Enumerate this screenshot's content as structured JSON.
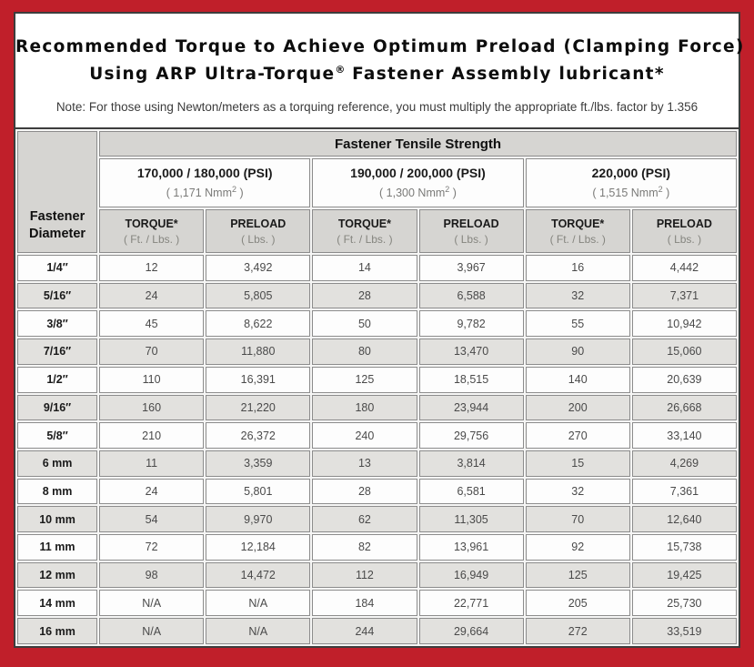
{
  "page": {
    "title_line1": "Recommended Torque to Achieve Optimum Preload (Clamping Force)",
    "title_line2_pre": "Using ARP Ultra-Torque",
    "title_line2_mark": "®",
    "title_line2_post": " Fastener Assembly lubricant*",
    "note": "Note: For those using Newton/meters as a torquing reference, you must multiply the appropriate ft./lbs. factor by 1.356"
  },
  "colors": {
    "frame_red": "#c01f2a",
    "header_gray": "#d6d5d2",
    "row_alt_gray": "#e2e1de",
    "cell_border": "#8c8c8c",
    "outer_border": "#3d3d3d"
  },
  "table": {
    "main_header": "Fastener Tensile Strength",
    "corner_header": {
      "line1": "Fastener",
      "line2": "Diameter"
    },
    "groups": [
      {
        "psi": "170,000 / 180,000 (PSI)",
        "nmm_pre": "( 1,171 Nmm",
        "nmm_sup": "2",
        "nmm_post": " )"
      },
      {
        "psi": "190,000 / 200,000 (PSI)",
        "nmm_pre": "( 1,300 Nmm",
        "nmm_sup": "2",
        "nmm_post": " )"
      },
      {
        "psi": "220,000 (PSI)",
        "nmm_pre": "( 1,515 Nmm",
        "nmm_sup": "2",
        "nmm_post": " )"
      }
    ],
    "col_headers": {
      "torque": {
        "label": "TORQUE*",
        "unit": "( Ft. / Lbs. )"
      },
      "preload": {
        "label": "PRELOAD",
        "unit": "( Lbs. )"
      }
    },
    "rows": [
      {
        "diameter": "1/4″",
        "values": [
          "12",
          "3,492",
          "14",
          "3,967",
          "16",
          "4,442"
        ]
      },
      {
        "diameter": "5/16″",
        "values": [
          "24",
          "5,805",
          "28",
          "6,588",
          "32",
          "7,371"
        ]
      },
      {
        "diameter": "3/8″",
        "values": [
          "45",
          "8,622",
          "50",
          "9,782",
          "55",
          "10,942"
        ]
      },
      {
        "diameter": "7/16″",
        "values": [
          "70",
          "11,880",
          "80",
          "13,470",
          "90",
          "15,060"
        ]
      },
      {
        "diameter": "1/2″",
        "values": [
          "110",
          "16,391",
          "125",
          "18,515",
          "140",
          "20,639"
        ]
      },
      {
        "diameter": "9/16″",
        "values": [
          "160",
          "21,220",
          "180",
          "23,944",
          "200",
          "26,668"
        ]
      },
      {
        "diameter": "5/8″",
        "values": [
          "210",
          "26,372",
          "240",
          "29,756",
          "270",
          "33,140"
        ]
      },
      {
        "diameter": "6 mm",
        "values": [
          "11",
          "3,359",
          "13",
          "3,814",
          "15",
          "4,269"
        ]
      },
      {
        "diameter": "8 mm",
        "values": [
          "24",
          "5,801",
          "28",
          "6,581",
          "32",
          "7,361"
        ]
      },
      {
        "diameter": "10 mm",
        "values": [
          "54",
          "9,970",
          "62",
          "11,305",
          "70",
          "12,640"
        ]
      },
      {
        "diameter": "11 mm",
        "values": [
          "72",
          "12,184",
          "82",
          "13,961",
          "92",
          "15,738"
        ]
      },
      {
        "diameter": "12 mm",
        "values": [
          "98",
          "14,472",
          "112",
          "16,949",
          "125",
          "19,425"
        ]
      },
      {
        "diameter": "14 mm",
        "values": [
          "N/A",
          "N/A",
          "184",
          "22,771",
          "205",
          "25,730"
        ]
      },
      {
        "diameter": "16 mm",
        "values": [
          "N/A",
          "N/A",
          "244",
          "29,664",
          "272",
          "33,519"
        ]
      }
    ]
  }
}
